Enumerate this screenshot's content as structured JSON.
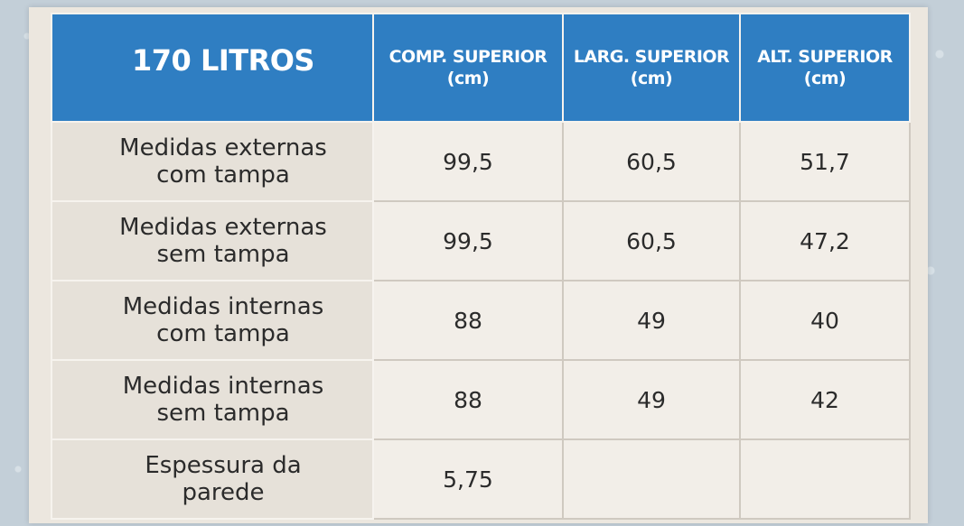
{
  "table": {
    "title": "170 LITROS",
    "columns": [
      {
        "line1": "COMP. SUPERIOR",
        "line2": "(cm)"
      },
      {
        "line1": "LARG. SUPERIOR",
        "line2": "(cm)"
      },
      {
        "line1": "ALT. SUPERIOR",
        "line2": "(cm)"
      }
    ],
    "rows": [
      {
        "label1": "Medidas externas",
        "label2": "com tampa",
        "values": [
          "99,5",
          "60,5",
          "51,7"
        ]
      },
      {
        "label1": "Medidas externas",
        "label2": "sem tampa",
        "values": [
          "99,5",
          "60,5",
          "47,2"
        ]
      },
      {
        "label1": "Medidas internas",
        "label2": "com tampa",
        "values": [
          "88",
          "49",
          "40"
        ]
      },
      {
        "label1": "Medidas internas",
        "label2": "sem tampa",
        "values": [
          "88",
          "49",
          "42"
        ]
      },
      {
        "label1": "Espessura da",
        "label2": "parede",
        "values": [
          "5,75",
          "",
          ""
        ]
      }
    ]
  },
  "colors": {
    "header_blue": "#2f7ec2",
    "label_bg": "#e6e1d9",
    "cell_bg": "#f2eee8"
  }
}
